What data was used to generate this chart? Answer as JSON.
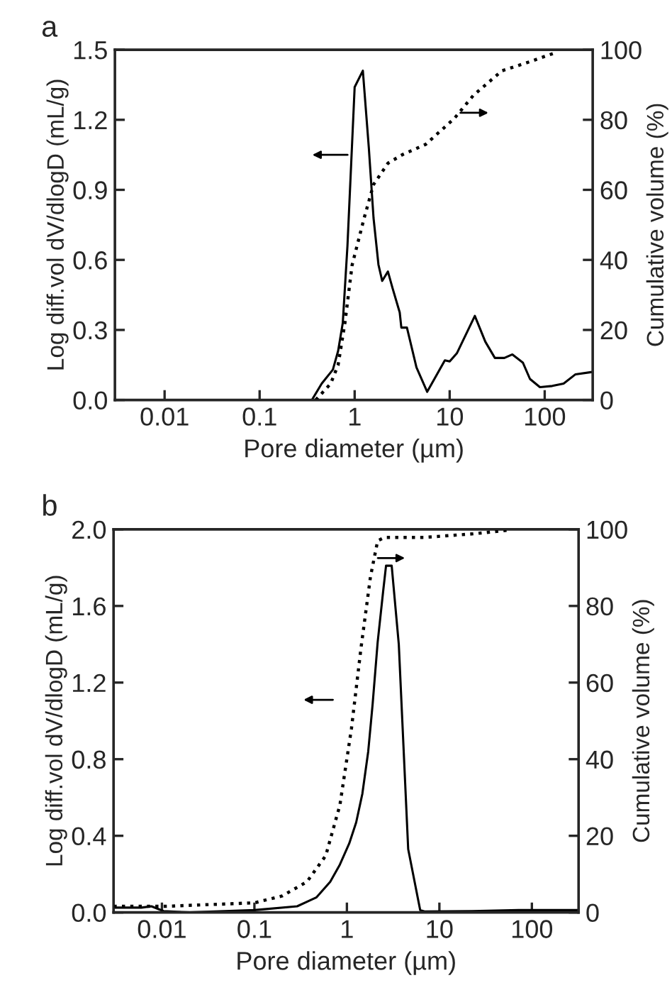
{
  "chart_data": [
    {
      "type": "line",
      "title": "a",
      "xlabel": "Pore diameter (µm)",
      "ylabel": "Log diff.vol dV/dlogD (mL/g)",
      "y2label": "Cumulative volume (%)",
      "log": "x",
      "grid": false,
      "marker": "none",
      "xlim": [
        0.003,
        320
      ],
      "xticks": [
        0.01,
        0.1,
        1,
        10,
        100
      ],
      "ylim": [
        0,
        1.5
      ],
      "yticks": [
        {
          "value": 0,
          "label": "0.0"
        },
        {
          "value": 0.3,
          "label": "0.3"
        },
        {
          "value": 0.6,
          "label": "0.6"
        },
        {
          "value": 0.9,
          "label": "0.9"
        },
        {
          "value": 1.2,
          "label": "1.2"
        },
        {
          "value": 1.5,
          "label": "1.5"
        }
      ],
      "y2lim": [
        0,
        100
      ],
      "y2ticks": [
        0,
        20,
        40,
        60,
        80,
        100
      ],
      "series": [
        {
          "color": "#000000",
          "line_style": "solid",
          "x": [
            0.355,
            0.45,
            0.59,
            0.67,
            0.75,
            0.84,
            1.0,
            1.22,
            1.41,
            1.58,
            1.78,
            1.95,
            2.24,
            2.5,
            2.98,
            3.1,
            3.55,
            4.47,
            5.8,
            8.9,
            10,
            11.9,
            18.4,
            23.7,
            29.9,
            37.6,
            45.7,
            58.9,
            70,
            89,
            120,
            158,
            211,
            316
          ],
          "values": [
            0,
            0.07,
            0.13,
            0.21,
            0.33,
            0.66,
            1.34,
            1.41,
            1.08,
            0.78,
            0.58,
            0.51,
            0.55,
            0.48,
            0.375,
            0.31,
            0.31,
            0.14,
            0.035,
            0.17,
            0.165,
            0.2,
            0.36,
            0.25,
            0.18,
            0.18,
            0.195,
            0.16,
            0.09,
            0.055,
            0.06,
            0.07,
            0.11,
            0.12
          ]
        },
        {
          "color": "#000000",
          "line_style": "dotted",
          "axis": "y2",
          "x": [
            0.39,
            0.56,
            0.67,
            0.79,
            0.94,
            1.26,
            1.58,
            2.24,
            3.16,
            5.6,
            11.2,
            17.8,
            35.5,
            70,
            134
          ],
          "values": [
            0,
            4.7,
            10,
            22,
            38.5,
            52,
            61.5,
            67.6,
            70,
            73,
            80.4,
            87,
            94,
            96.6,
            99.3
          ]
        }
      ]
    },
    {
      "type": "line",
      "title": "b",
      "xlabel": "Pore diameter (µm)",
      "ylabel": "Log diff.vol dV/dlogD (mL/g)",
      "y2label": "Cumulative volume (%)",
      "log": "x",
      "grid": false,
      "marker": "none",
      "xlim": [
        0.003,
        320
      ],
      "xticks": [
        0.01,
        0.1,
        1,
        10,
        100
      ],
      "ylim": [
        0,
        2.0
      ],
      "yticks": [
        {
          "value": 0,
          "label": "0.0"
        },
        {
          "value": 0.4,
          "label": "0.4"
        },
        {
          "value": 0.8,
          "label": "0.8"
        },
        {
          "value": 1.2,
          "label": "1.2"
        },
        {
          "value": 1.6,
          "label": "1.6"
        },
        {
          "value": 2.0,
          "label": "2.0"
        }
      ],
      "y2lim": [
        0,
        100
      ],
      "y2ticks": [
        0,
        20,
        40,
        60,
        80,
        100
      ],
      "series": [
        {
          "color": "#000000",
          "line_style": "solid",
          "x": [
            0.003,
            0.006,
            0.0077,
            0.0104,
            0.02,
            0.1,
            0.29,
            0.47,
            0.66,
            0.84,
            1.06,
            1.26,
            1.47,
            1.7,
            1.9,
            2.15,
            2.47,
            2.65,
            3.05,
            3.64,
            4.6,
            6.2,
            6.9,
            22.5,
            72,
            316
          ],
          "values": [
            0.025,
            0.025,
            0.032,
            0.007,
            0,
            0.012,
            0.032,
            0.079,
            0.16,
            0.25,
            0.36,
            0.47,
            0.62,
            0.84,
            1.09,
            1.41,
            1.68,
            1.81,
            1.81,
            1.4,
            0.33,
            0.012,
            0.005,
            0.007,
            0.012,
            0.012
          ]
        },
        {
          "color": "#000000",
          "line_style": "dotted",
          "axis": "y2",
          "x": [
            0.003,
            0.011,
            0.1,
            0.2,
            0.37,
            0.59,
            0.84,
            1.12,
            1.42,
            1.8,
            2.15,
            2.56,
            6.9,
            22.5,
            57.6
          ],
          "values": [
            1.6,
            1.6,
            2.5,
            4.3,
            8,
            14.8,
            28,
            48,
            69,
            87.7,
            97,
            97.9,
            97.9,
            98.8,
            99.8
          ]
        }
      ]
    }
  ]
}
